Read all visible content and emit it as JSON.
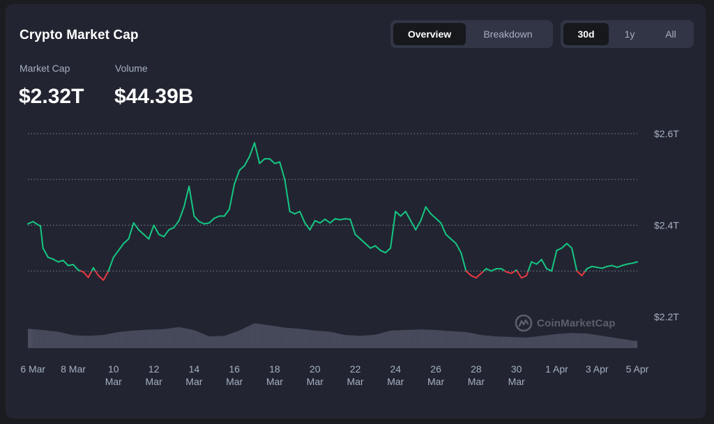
{
  "header": {
    "title": "Crypto Market Cap",
    "view_tabs": [
      "Overview",
      "Breakdown"
    ],
    "active_view": "Overview",
    "range_tabs": [
      "30d",
      "1y",
      "All"
    ],
    "active_range": "30d"
  },
  "stats": {
    "market_cap_label": "Market Cap",
    "market_cap_value": "$2.32T",
    "volume_label": "Volume",
    "volume_value": "$44.39B"
  },
  "watermark": {
    "text": "CoinMarketCap",
    "icon": "coinmarketcap-logo-icon"
  },
  "colors": {
    "up": "#16c784",
    "down": "#ea3943",
    "volume": "#4e5264",
    "grid": "#a1a7bb",
    "text": "#a6b0c3"
  },
  "chart_data": {
    "type": "line",
    "title": "",
    "y_unit": "trillion USD",
    "ylim": [
      2.2,
      2.6
    ],
    "y_ticks": [
      2.2,
      2.4,
      2.6
    ],
    "y_tick_labels": [
      "$2.2T",
      "$2.4T",
      "$2.6T"
    ],
    "y_gridlines": [
      2.3,
      2.4,
      2.5,
      2.6
    ],
    "baseline": 2.3,
    "baseline_note": "line is green above baseline, red below",
    "x_range": [
      "2024-03-05T18:00",
      "2024-04-05"
    ],
    "x_ticks": [
      {
        "date": "2024-03-06",
        "label": [
          "6 Mar"
        ]
      },
      {
        "date": "2024-03-08",
        "label": [
          "8 Mar"
        ]
      },
      {
        "date": "2024-03-10",
        "label": [
          "10",
          "Mar"
        ]
      },
      {
        "date": "2024-03-12",
        "label": [
          "12",
          "Mar"
        ]
      },
      {
        "date": "2024-03-14",
        "label": [
          "14",
          "Mar"
        ]
      },
      {
        "date": "2024-03-16",
        "label": [
          "16",
          "Mar"
        ]
      },
      {
        "date": "2024-03-18",
        "label": [
          "18",
          "Mar"
        ]
      },
      {
        "date": "2024-03-20",
        "label": [
          "20",
          "Mar"
        ]
      },
      {
        "date": "2024-03-22",
        "label": [
          "22",
          "Mar"
        ]
      },
      {
        "date": "2024-03-24",
        "label": [
          "24",
          "Mar"
        ]
      },
      {
        "date": "2024-03-26",
        "label": [
          "26",
          "Mar"
        ]
      },
      {
        "date": "2024-03-28",
        "label": [
          "28",
          "Mar"
        ]
      },
      {
        "date": "2024-03-30",
        "label": [
          "30",
          "Mar"
        ]
      },
      {
        "date": "2024-04-01",
        "label": [
          "1 Apr"
        ]
      },
      {
        "date": "2024-04-03",
        "label": [
          "3 Apr"
        ]
      },
      {
        "date": "2024-04-05",
        "label": [
          "5 Apr"
        ]
      }
    ],
    "series": [
      {
        "values_format": "[date, market cap in trillions USD]",
        "points": [
          [
            "2024-03-05T18:00",
            2.403
          ],
          [
            "2024-03-06T00:00",
            2.408
          ],
          [
            "2024-03-06T06:00",
            2.401
          ],
          [
            "2024-03-06T09:00",
            2.398
          ],
          [
            "2024-03-06T12:00",
            2.35
          ],
          [
            "2024-03-06T18:00",
            2.33
          ],
          [
            "2024-03-07T00:00",
            2.326
          ],
          [
            "2024-03-07T06:00",
            2.32
          ],
          [
            "2024-03-07T12:00",
            2.323
          ],
          [
            "2024-03-07T18:00",
            2.312
          ],
          [
            "2024-03-08T00:00",
            2.314
          ],
          [
            "2024-03-08T06:00",
            2.302
          ],
          [
            "2024-03-08T12:00",
            2.298
          ],
          [
            "2024-03-08T18:00",
            2.286
          ],
          [
            "2024-03-09T00:00",
            2.307
          ],
          [
            "2024-03-09T06:00",
            2.29
          ],
          [
            "2024-03-09T12:00",
            2.28
          ],
          [
            "2024-03-09T18:00",
            2.3
          ],
          [
            "2024-03-10T00:00",
            2.33
          ],
          [
            "2024-03-10T06:00",
            2.345
          ],
          [
            "2024-03-10T12:00",
            2.36
          ],
          [
            "2024-03-10T18:00",
            2.37
          ],
          [
            "2024-03-11T00:00",
            2.405
          ],
          [
            "2024-03-11T06:00",
            2.39
          ],
          [
            "2024-03-11T12:00",
            2.38
          ],
          [
            "2024-03-11T18:00",
            2.37
          ],
          [
            "2024-03-12T00:00",
            2.4
          ],
          [
            "2024-03-12T06:00",
            2.38
          ],
          [
            "2024-03-12T12:00",
            2.375
          ],
          [
            "2024-03-12T18:00",
            2.39
          ],
          [
            "2024-03-13T00:00",
            2.395
          ],
          [
            "2024-03-13T06:00",
            2.41
          ],
          [
            "2024-03-13T12:00",
            2.44
          ],
          [
            "2024-03-13T18:00",
            2.485
          ],
          [
            "2024-03-14T00:00",
            2.42
          ],
          [
            "2024-03-14T06:00",
            2.408
          ],
          [
            "2024-03-14T12:00",
            2.403
          ],
          [
            "2024-03-14T18:00",
            2.405
          ],
          [
            "2024-03-15T00:00",
            2.415
          ],
          [
            "2024-03-15T06:00",
            2.42
          ],
          [
            "2024-03-15T12:00",
            2.42
          ],
          [
            "2024-03-15T18:00",
            2.435
          ],
          [
            "2024-03-16T00:00",
            2.49
          ],
          [
            "2024-03-16T06:00",
            2.52
          ],
          [
            "2024-03-16T12:00",
            2.53
          ],
          [
            "2024-03-16T18:00",
            2.55
          ],
          [
            "2024-03-17T00:00",
            2.58
          ],
          [
            "2024-03-17T06:00",
            2.535
          ],
          [
            "2024-03-17T12:00",
            2.545
          ],
          [
            "2024-03-17T18:00",
            2.545
          ],
          [
            "2024-03-18T00:00",
            2.535
          ],
          [
            "2024-03-18T06:00",
            2.538
          ],
          [
            "2024-03-18T12:00",
            2.5
          ],
          [
            "2024-03-18T18:00",
            2.43
          ],
          [
            "2024-03-19T00:00",
            2.425
          ],
          [
            "2024-03-19T06:00",
            2.43
          ],
          [
            "2024-03-19T12:00",
            2.405
          ],
          [
            "2024-03-19T18:00",
            2.39
          ],
          [
            "2024-03-20T00:00",
            2.41
          ],
          [
            "2024-03-20T06:00",
            2.405
          ],
          [
            "2024-03-20T12:00",
            2.413
          ],
          [
            "2024-03-20T18:00",
            2.405
          ],
          [
            "2024-03-21T00:00",
            2.414
          ],
          [
            "2024-03-21T06:00",
            2.412
          ],
          [
            "2024-03-21T12:00",
            2.414
          ],
          [
            "2024-03-21T18:00",
            2.413
          ],
          [
            "2024-03-22T00:00",
            2.38
          ],
          [
            "2024-03-22T06:00",
            2.37
          ],
          [
            "2024-03-22T12:00",
            2.36
          ],
          [
            "2024-03-22T18:00",
            2.35
          ],
          [
            "2024-03-23T00:00",
            2.355
          ],
          [
            "2024-03-23T06:00",
            2.345
          ],
          [
            "2024-03-23T12:00",
            2.34
          ],
          [
            "2024-03-23T18:00",
            2.35
          ],
          [
            "2024-03-24T00:00",
            2.43
          ],
          [
            "2024-03-24T06:00",
            2.42
          ],
          [
            "2024-03-24T12:00",
            2.43
          ],
          [
            "2024-03-24T18:00",
            2.41
          ],
          [
            "2024-03-25T00:00",
            2.39
          ],
          [
            "2024-03-25T06:00",
            2.41
          ],
          [
            "2024-03-25T12:00",
            2.44
          ],
          [
            "2024-03-25T18:00",
            2.425
          ],
          [
            "2024-03-26T00:00",
            2.415
          ],
          [
            "2024-03-26T06:00",
            2.405
          ],
          [
            "2024-03-26T12:00",
            2.38
          ],
          [
            "2024-03-26T18:00",
            2.37
          ],
          [
            "2024-03-27T00:00",
            2.36
          ],
          [
            "2024-03-27T06:00",
            2.34
          ],
          [
            "2024-03-27T12:00",
            2.3
          ],
          [
            "2024-03-27T18:00",
            2.29
          ],
          [
            "2024-03-28T00:00",
            2.285
          ],
          [
            "2024-03-28T06:00",
            2.295
          ],
          [
            "2024-03-28T12:00",
            2.305
          ],
          [
            "2024-03-28T18:00",
            2.3
          ],
          [
            "2024-03-29T00:00",
            2.305
          ],
          [
            "2024-03-29T06:00",
            2.305
          ],
          [
            "2024-03-29T12:00",
            2.298
          ],
          [
            "2024-03-29T18:00",
            2.295
          ],
          [
            "2024-03-30T00:00",
            2.302
          ],
          [
            "2024-03-30T06:00",
            2.285
          ],
          [
            "2024-03-30T12:00",
            2.29
          ],
          [
            "2024-03-30T18:00",
            2.32
          ],
          [
            "2024-03-31T00:00",
            2.315
          ],
          [
            "2024-03-31T06:00",
            2.325
          ],
          [
            "2024-03-31T12:00",
            2.305
          ],
          [
            "2024-03-31T18:00",
            2.3
          ],
          [
            "2024-04-01T00:00",
            2.345
          ],
          [
            "2024-04-01T06:00",
            2.35
          ],
          [
            "2024-04-01T12:00",
            2.36
          ],
          [
            "2024-04-01T18:00",
            2.35
          ],
          [
            "2024-04-02T00:00",
            2.3
          ],
          [
            "2024-04-02T06:00",
            2.29
          ],
          [
            "2024-04-02T12:00",
            2.305
          ],
          [
            "2024-04-02T18:00",
            2.31
          ],
          [
            "2024-04-03T00:00",
            2.308
          ],
          [
            "2024-04-03T06:00",
            2.306
          ],
          [
            "2024-04-03T12:00",
            2.31
          ],
          [
            "2024-04-03T18:00",
            2.312
          ],
          [
            "2024-04-04T00:00",
            2.308
          ],
          [
            "2024-04-04T06:00",
            2.312
          ],
          [
            "2024-04-04T12:00",
            2.315
          ],
          [
            "2024-04-04T18:00",
            2.317
          ],
          [
            "2024-04-05T00:00",
            2.32
          ]
        ]
      },
      {
        "name": "Volume",
        "type": "area",
        "values_format": "[date, relative volume 0-1]",
        "points": [
          [
            "2024-03-05T18:00",
            0.66
          ],
          [
            "2024-03-06T12:00",
            0.62
          ],
          [
            "2024-03-07T06:00",
            0.56
          ],
          [
            "2024-03-08T00:00",
            0.44
          ],
          [
            "2024-03-08T18:00",
            0.42
          ],
          [
            "2024-03-09T12:00",
            0.45
          ],
          [
            "2024-03-10T06:00",
            0.55
          ],
          [
            "2024-03-11T00:00",
            0.6
          ],
          [
            "2024-03-11T18:00",
            0.63
          ],
          [
            "2024-03-12T12:00",
            0.65
          ],
          [
            "2024-03-13T06:00",
            0.72
          ],
          [
            "2024-03-14T00:00",
            0.62
          ],
          [
            "2024-03-14T18:00",
            0.4
          ],
          [
            "2024-03-15T12:00",
            0.42
          ],
          [
            "2024-03-16T06:00",
            0.6
          ],
          [
            "2024-03-17T00:00",
            0.85
          ],
          [
            "2024-03-17T18:00",
            0.78
          ],
          [
            "2024-03-18T12:00",
            0.7
          ],
          [
            "2024-03-19T06:00",
            0.66
          ],
          [
            "2024-03-20T00:00",
            0.6
          ],
          [
            "2024-03-20T18:00",
            0.56
          ],
          [
            "2024-03-21T12:00",
            0.45
          ],
          [
            "2024-03-22T06:00",
            0.42
          ],
          [
            "2024-03-23T00:00",
            0.46
          ],
          [
            "2024-03-23T18:00",
            0.6
          ],
          [
            "2024-03-24T12:00",
            0.62
          ],
          [
            "2024-03-25T06:00",
            0.64
          ],
          [
            "2024-03-26T00:00",
            0.62
          ],
          [
            "2024-03-26T18:00",
            0.58
          ],
          [
            "2024-03-27T12:00",
            0.55
          ],
          [
            "2024-03-28T06:00",
            0.45
          ],
          [
            "2024-03-29T00:00",
            0.4
          ],
          [
            "2024-03-29T18:00",
            0.38
          ],
          [
            "2024-03-30T12:00",
            0.36
          ],
          [
            "2024-03-31T06:00",
            0.42
          ],
          [
            "2024-04-01T00:00",
            0.48
          ],
          [
            "2024-04-01T18:00",
            0.52
          ],
          [
            "2024-04-02T12:00",
            0.5
          ],
          [
            "2024-04-03T06:00",
            0.42
          ],
          [
            "2024-04-04T00:00",
            0.34
          ],
          [
            "2024-04-04T18:00",
            0.26
          ],
          [
            "2024-04-05T00:00",
            0.24
          ]
        ]
      }
    ]
  }
}
